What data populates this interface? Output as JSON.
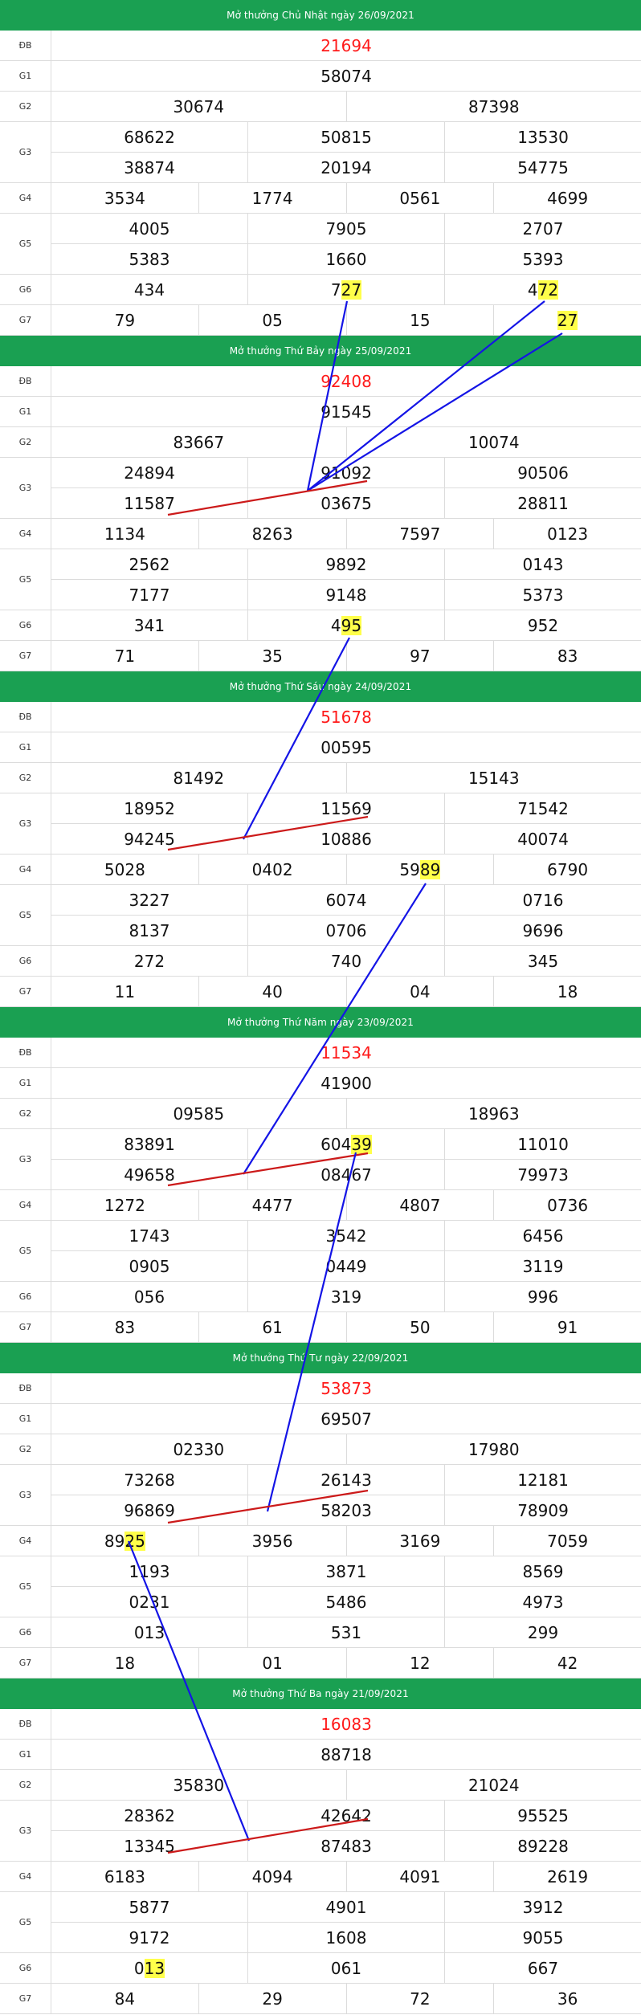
{
  "sections": [
    {
      "title": "Mở thưởng Chủ Nhật ngày 26/09/2021",
      "rows": [
        {
          "label": "ĐB",
          "lines": [
            [
              "21694"
            ]
          ]
        },
        {
          "label": "G1",
          "lines": [
            [
              "58074"
            ]
          ]
        },
        {
          "label": "G2",
          "lines": [
            [
              "30674",
              "87398"
            ]
          ]
        },
        {
          "label": "G3",
          "lines": [
            [
              "68622",
              "50815",
              "13530"
            ],
            [
              "38874",
              "20194",
              "54775"
            ]
          ]
        },
        {
          "label": "G4",
          "lines": [
            [
              "3534",
              "1774",
              "0561",
              "4699"
            ]
          ]
        },
        {
          "label": "G5",
          "lines": [
            [
              "4005",
              "7905",
              "2707"
            ],
            [
              "5383",
              "1660",
              "5393"
            ]
          ]
        },
        {
          "label": "G6",
          "lines": [
            [
              "434",
              "727",
              "472"
            ]
          ]
        },
        {
          "label": "G7",
          "lines": [
            [
              "79",
              "05",
              "15",
              "27"
            ]
          ]
        }
      ]
    },
    {
      "title": "Mở thưởng Thứ Bảy ngày 25/09/2021",
      "rows": [
        {
          "label": "ĐB",
          "lines": [
            [
              "92408"
            ]
          ]
        },
        {
          "label": "G1",
          "lines": [
            [
              "91545"
            ]
          ]
        },
        {
          "label": "G2",
          "lines": [
            [
              "83667",
              "10074"
            ]
          ]
        },
        {
          "label": "G3",
          "lines": [
            [
              "24894",
              "91092",
              "90506"
            ],
            [
              "11587",
              "03675",
              "28811"
            ]
          ]
        },
        {
          "label": "G4",
          "lines": [
            [
              "1134",
              "8263",
              "7597",
              "0123"
            ]
          ]
        },
        {
          "label": "G5",
          "lines": [
            [
              "2562",
              "9892",
              "0143"
            ],
            [
              "7177",
              "9148",
              "5373"
            ]
          ]
        },
        {
          "label": "G6",
          "lines": [
            [
              "341",
              "495",
              "952"
            ]
          ]
        },
        {
          "label": "G7",
          "lines": [
            [
              "71",
              "35",
              "97",
              "83"
            ]
          ]
        }
      ]
    },
    {
      "title": "Mở thưởng Thứ Sáu ngày 24/09/2021",
      "rows": [
        {
          "label": "ĐB",
          "lines": [
            [
              "51678"
            ]
          ]
        },
        {
          "label": "G1",
          "lines": [
            [
              "00595"
            ]
          ]
        },
        {
          "label": "G2",
          "lines": [
            [
              "81492",
              "15143"
            ]
          ]
        },
        {
          "label": "G3",
          "lines": [
            [
              "18952",
              "11569",
              "71542"
            ],
            [
              "94245",
              "10886",
              "40074"
            ]
          ]
        },
        {
          "label": "G4",
          "lines": [
            [
              "5028",
              "0402",
              "5989",
              "6790"
            ]
          ]
        },
        {
          "label": "G5",
          "lines": [
            [
              "3227",
              "6074",
              "0716"
            ],
            [
              "8137",
              "0706",
              "9696"
            ]
          ]
        },
        {
          "label": "G6",
          "lines": [
            [
              "272",
              "740",
              "345"
            ]
          ]
        },
        {
          "label": "G7",
          "lines": [
            [
              "11",
              "40",
              "04",
              "18"
            ]
          ]
        }
      ]
    },
    {
      "title": "Mở thưởng Thứ Năm ngày 23/09/2021",
      "rows": [
        {
          "label": "ĐB",
          "lines": [
            [
              "11534"
            ]
          ]
        },
        {
          "label": "G1",
          "lines": [
            [
              "41900"
            ]
          ]
        },
        {
          "label": "G2",
          "lines": [
            [
              "09585",
              "18963"
            ]
          ]
        },
        {
          "label": "G3",
          "lines": [
            [
              "83891",
              "60439",
              "11010"
            ],
            [
              "49658",
              "08467",
              "79973"
            ]
          ]
        },
        {
          "label": "G4",
          "lines": [
            [
              "1272",
              "4477",
              "4807",
              "0736"
            ]
          ]
        },
        {
          "label": "G5",
          "lines": [
            [
              "1743",
              "3542",
              "6456"
            ],
            [
              "0905",
              "0449",
              "3119"
            ]
          ]
        },
        {
          "label": "G6",
          "lines": [
            [
              "056",
              "319",
              "996"
            ]
          ]
        },
        {
          "label": "G7",
          "lines": [
            [
              "83",
              "61",
              "50",
              "91"
            ]
          ]
        }
      ]
    },
    {
      "title": "Mở thưởng Thứ Tư ngày 22/09/2021",
      "rows": [
        {
          "label": "ĐB",
          "lines": [
            [
              "53873"
            ]
          ]
        },
        {
          "label": "G1",
          "lines": [
            [
              "69507"
            ]
          ]
        },
        {
          "label": "G2",
          "lines": [
            [
              "02330",
              "17980"
            ]
          ]
        },
        {
          "label": "G3",
          "lines": [
            [
              "73268",
              "26143",
              "12181"
            ],
            [
              "96869",
              "58203",
              "78909"
            ]
          ]
        },
        {
          "label": "G4",
          "lines": [
            [
              "8925",
              "3956",
              "3169",
              "7059"
            ]
          ]
        },
        {
          "label": "G5",
          "lines": [
            [
              "1193",
              "3871",
              "8569"
            ],
            [
              "0231",
              "5486",
              "4973"
            ]
          ]
        },
        {
          "label": "G6",
          "lines": [
            [
              "013",
              "531",
              "299"
            ]
          ]
        },
        {
          "label": "G7",
          "lines": [
            [
              "18",
              "01",
              "12",
              "42"
            ]
          ]
        }
      ]
    },
    {
      "title": "Mở thưởng Thứ Ba ngày 21/09/2021",
      "rows": [
        {
          "label": "ĐB",
          "lines": [
            [
              "16083"
            ]
          ]
        },
        {
          "label": "G1",
          "lines": [
            [
              "88718"
            ]
          ]
        },
        {
          "label": "G2",
          "lines": [
            [
              "35830",
              "21024"
            ]
          ]
        },
        {
          "label": "G3",
          "lines": [
            [
              "28362",
              "42642",
              "95525"
            ],
            [
              "13345",
              "87483",
              "89228"
            ]
          ]
        },
        {
          "label": "G4",
          "lines": [
            [
              "6183",
              "4094",
              "4091",
              "2619"
            ]
          ]
        },
        {
          "label": "G5",
          "lines": [
            [
              "5877",
              "4901",
              "3912"
            ],
            [
              "9172",
              "1608",
              "9055"
            ]
          ]
        },
        {
          "label": "G6",
          "lines": [
            [
              "013",
              "061",
              "667"
            ]
          ]
        },
        {
          "label": "G7",
          "lines": [
            [
              "84",
              "29",
              "72",
              "36"
            ]
          ]
        }
      ]
    }
  ],
  "highlights": [
    {
      "section": 0,
      "row": 6,
      "line": 0,
      "cell": 1,
      "hl_chars": 2
    },
    {
      "section": 0,
      "row": 6,
      "line": 0,
      "cell": 2,
      "hl_chars": 2
    },
    {
      "section": 0,
      "row": 7,
      "line": 0,
      "cell": 3,
      "hl_chars": 2
    },
    {
      "section": 1,
      "row": 6,
      "line": 0,
      "cell": 1,
      "hl_chars": 2
    },
    {
      "section": 2,
      "row": 4,
      "line": 0,
      "cell": 2,
      "hl_chars": 2
    },
    {
      "section": 3,
      "row": 3,
      "line": 0,
      "cell": 1,
      "hl_chars": 2
    },
    {
      "section": 4,
      "row": 4,
      "line": 0,
      "cell": 0,
      "hl_chars": 2
    },
    {
      "section": 5,
      "row": 6,
      "line": 0,
      "cell": 0,
      "hl_chars": 2
    }
  ],
  "colors": {
    "header": "#1aa052",
    "special_prize": "#ff1a1a",
    "highlight": "#ffff4a",
    "blue_line": "#1414e6",
    "red_line": "#cc1a1a"
  }
}
